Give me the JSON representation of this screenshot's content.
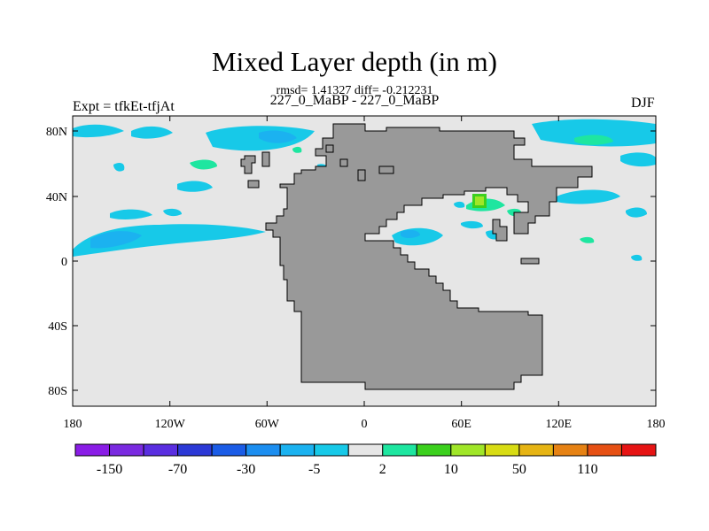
{
  "title": "Mixed Layer depth (in m)",
  "stats_line": "rmsd= 1.41327 diff= -0.212231",
  "subtitle": "227_0_MaBP - 227_0_MaBP",
  "left_label": "Expt = tfkEt-tfjAt",
  "right_label": "DJF",
  "map": {
    "lat_ticks": [
      "80N",
      "40N",
      "0",
      "40S",
      "80S"
    ],
    "lon_ticks": [
      "180",
      "120W",
      "60W",
      "0",
      "60E",
      "120E",
      "180"
    ],
    "ocean_color": "#e6e6e6",
    "land_color": "#999999"
  },
  "colorbar": {
    "colors": [
      "#8a1de6",
      "#7a2ae0",
      "#5a2ee0",
      "#2c39d6",
      "#1b5ce6",
      "#1c8ef0",
      "#1bb2f0",
      "#17c9e8",
      "#e6e6e6",
      "#1ee6a0",
      "#3cd01e",
      "#a0e628",
      "#d8dc14",
      "#e6b414",
      "#e68214",
      "#e65014",
      "#e61414"
    ],
    "labels": [
      "-150",
      "-70",
      "-30",
      "-5",
      "2",
      "10",
      "50",
      "110"
    ]
  }
}
